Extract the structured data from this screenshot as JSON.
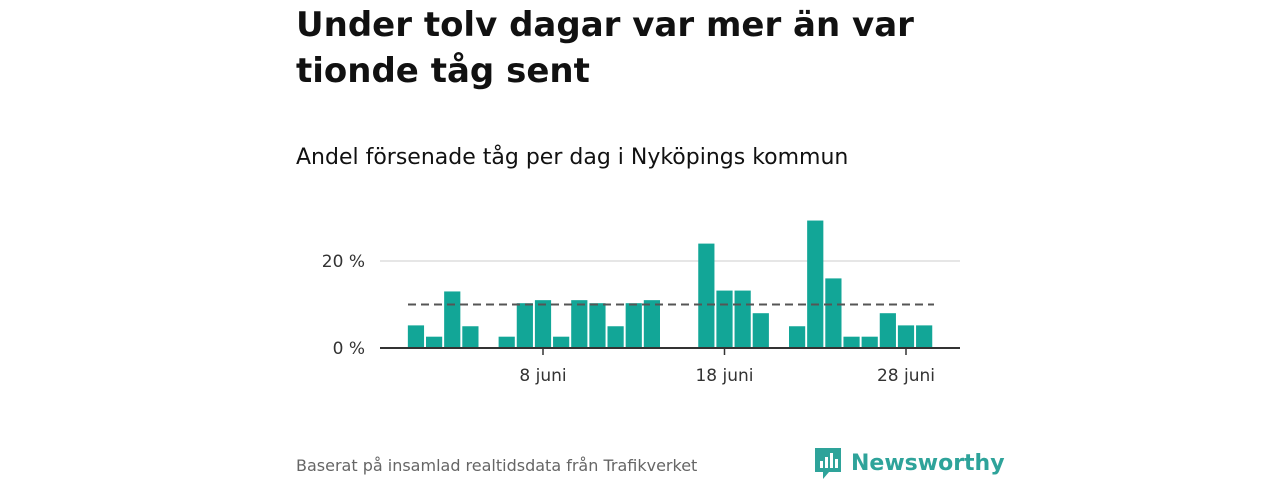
{
  "title": "Under tolv dagar var mer än var tionde tåg sent",
  "subtitle": "Andel försenade tåg per dag i Nyköpings kommun",
  "footer": "Baserat på insamlad realtidsdata från Trafikverket",
  "logo_text": "Newsworthy",
  "colors": {
    "bar": "#12a697",
    "reference": "#555555",
    "grid": "#dddddd",
    "axis": "#333333",
    "logo": "#2ea39a"
  },
  "chart_data": {
    "type": "bar",
    "x_unit": "dag i juni",
    "x": [
      1,
      2,
      3,
      4,
      5,
      6,
      7,
      8,
      9,
      10,
      11,
      12,
      13,
      14,
      15,
      16,
      17,
      18,
      19,
      20,
      21,
      22,
      23,
      24,
      25,
      26,
      27,
      28,
      29
    ],
    "values": [
      5.2,
      2.6,
      13.0,
      5.0,
      null,
      2.6,
      10.3,
      11.0,
      2.6,
      11.0,
      10.3,
      5.0,
      10.3,
      11.0,
      null,
      null,
      24.0,
      13.2,
      13.2,
      8.0,
      null,
      5.0,
      29.3,
      16.0,
      2.6,
      2.6,
      8.0,
      5.2,
      5.2
    ],
    "reference_line": 10,
    "ylim": [
      0,
      30
    ],
    "yticks": [
      {
        "value": 0,
        "label": "0 %"
      },
      {
        "value": 20,
        "label": "20 %"
      }
    ],
    "xticks": [
      {
        "value": 8,
        "label": "8 juni"
      },
      {
        "value": 18,
        "label": "18 juni"
      },
      {
        "value": 28,
        "label": "28 juni"
      }
    ],
    "grid": true
  }
}
